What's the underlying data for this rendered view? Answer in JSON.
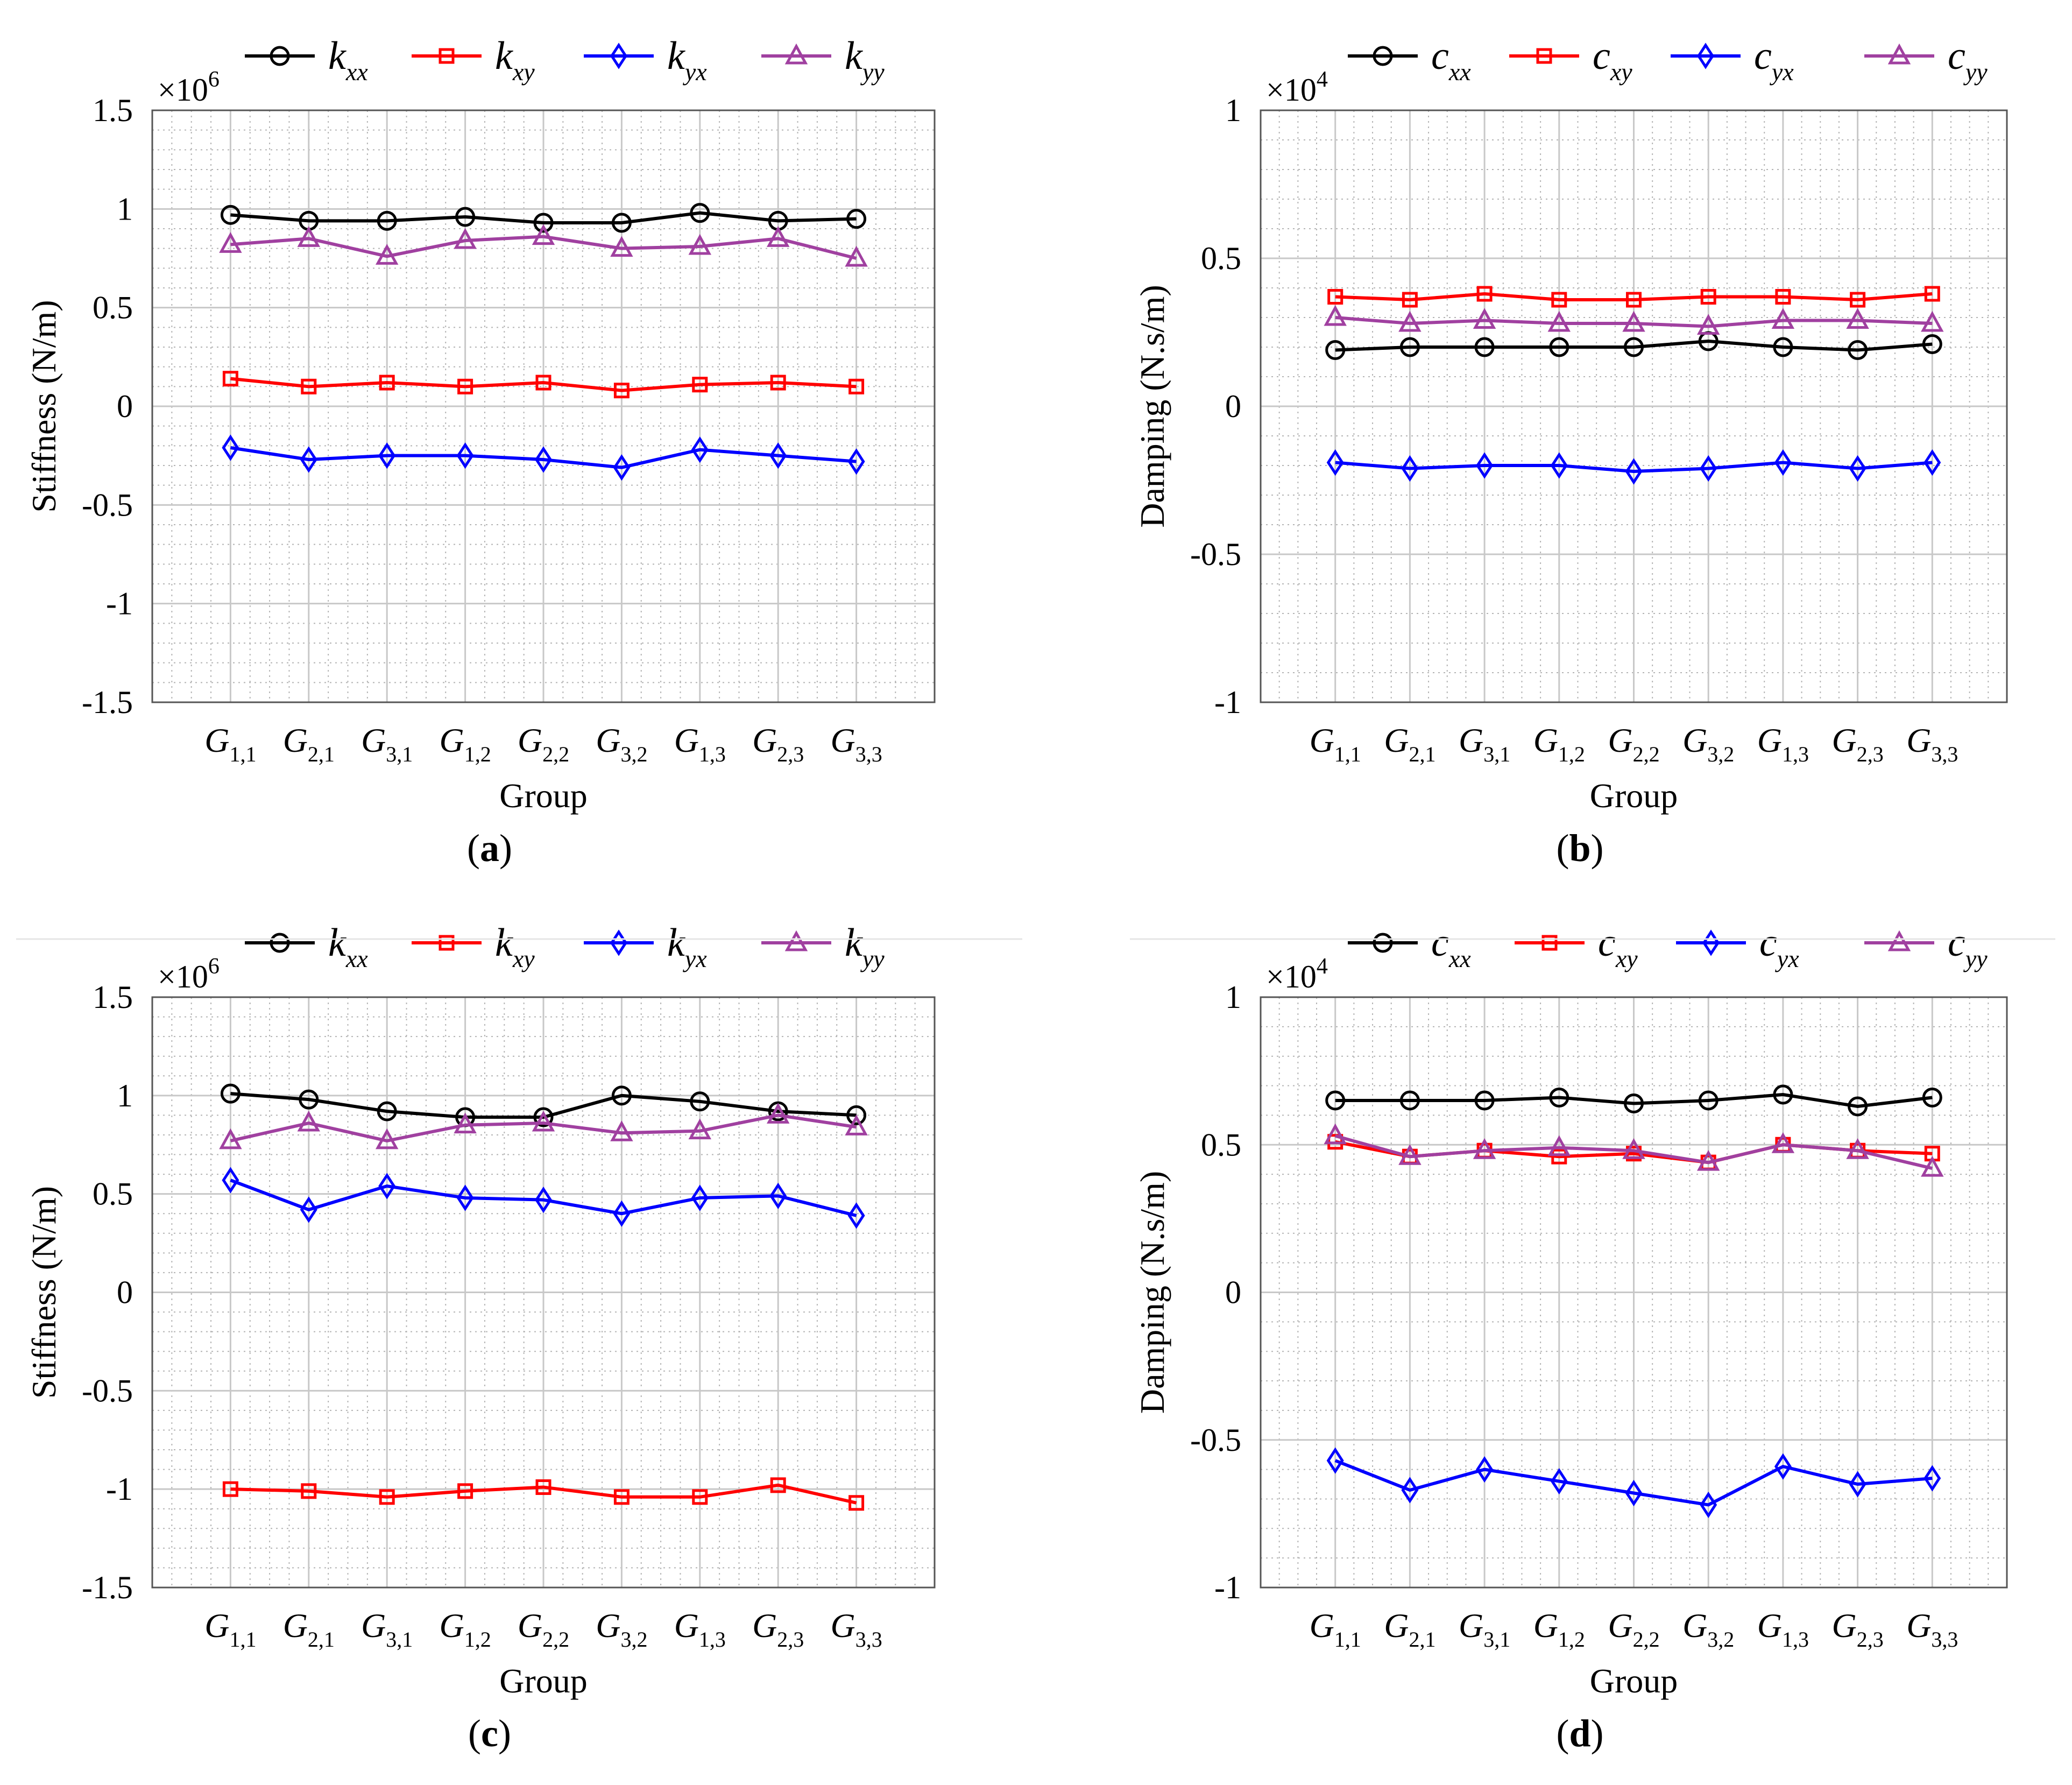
{
  "colors": {
    "kxx": "#000000",
    "kxy": "#ff0000",
    "kyx": "#0000ff",
    "kyy": "#a040a0",
    "grid": "#c8c8c8"
  },
  "chart_data": [
    {
      "id": "a",
      "type": "line",
      "panel_label": "a",
      "ylabel": "Stiffness (N/m)",
      "xlabel": "Group",
      "multiplier": "×10",
      "exponent": "6",
      "ylim": [
        -1.5,
        1.5
      ],
      "yticks": [
        -1.5,
        -1,
        -0.5,
        0,
        0.5,
        1,
        1.5
      ],
      "ytick_labels": [
        "-1.5",
        "-1",
        "-0.5",
        "0",
        "0.5",
        "1",
        "1.5"
      ],
      "categories": [
        {
          "base": "G",
          "sub": "1,1"
        },
        {
          "base": "G",
          "sub": "2,1"
        },
        {
          "base": "G",
          "sub": "3,1"
        },
        {
          "base": "G",
          "sub": "1,2"
        },
        {
          "base": "G",
          "sub": "2,2"
        },
        {
          "base": "G",
          "sub": "3,2"
        },
        {
          "base": "G",
          "sub": "1,3"
        },
        {
          "base": "G",
          "sub": "2,3"
        },
        {
          "base": "G",
          "sub": "3,3"
        }
      ],
      "series": [
        {
          "base": "k",
          "sub": "xx",
          "color": "#000000",
          "marker": "circle",
          "values": [
            0.97,
            0.94,
            0.94,
            0.96,
            0.93,
            0.93,
            0.98,
            0.94,
            0.95
          ]
        },
        {
          "base": "k",
          "sub": "xy",
          "color": "#ff0000",
          "marker": "square",
          "values": [
            0.14,
            0.1,
            0.12,
            0.1,
            0.12,
            0.08,
            0.11,
            0.12,
            0.1
          ]
        },
        {
          "base": "k",
          "sub": "yx",
          "color": "#0000ff",
          "marker": "diamond",
          "values": [
            -0.21,
            -0.27,
            -0.25,
            -0.25,
            -0.27,
            -0.31,
            -0.22,
            -0.25,
            -0.28
          ]
        },
        {
          "base": "k",
          "sub": "yy",
          "color": "#a040a0",
          "marker": "triangle",
          "values": [
            0.82,
            0.85,
            0.76,
            0.84,
            0.86,
            0.8,
            0.81,
            0.85,
            0.75
          ]
        }
      ]
    },
    {
      "id": "b",
      "type": "line",
      "panel_label": "b",
      "ylabel": "Damping (N.s/m)",
      "xlabel": "Group",
      "multiplier": "×10",
      "exponent": "4",
      "ylim": [
        -1,
        1
      ],
      "yticks": [
        -1,
        -0.5,
        0,
        0.5,
        1
      ],
      "ytick_labels": [
        "-1",
        "-0.5",
        "0",
        "0.5",
        "1"
      ],
      "categories": [
        {
          "base": "G",
          "sub": "1,1"
        },
        {
          "base": "G",
          "sub": "2,1"
        },
        {
          "base": "G",
          "sub": "3,1"
        },
        {
          "base": "G",
          "sub": "1,2"
        },
        {
          "base": "G",
          "sub": "2,2"
        },
        {
          "base": "G",
          "sub": "3,2"
        },
        {
          "base": "G",
          "sub": "1,3"
        },
        {
          "base": "G",
          "sub": "2,3"
        },
        {
          "base": "G",
          "sub": "3,3"
        }
      ],
      "series": [
        {
          "base": "c",
          "sub": "xx",
          "color": "#000000",
          "marker": "circle",
          "values": [
            0.19,
            0.2,
            0.2,
            0.2,
            0.2,
            0.22,
            0.2,
            0.19,
            0.21
          ]
        },
        {
          "base": "c",
          "sub": "xy",
          "color": "#ff0000",
          "marker": "square",
          "values": [
            0.37,
            0.36,
            0.38,
            0.36,
            0.36,
            0.37,
            0.37,
            0.36,
            0.38
          ]
        },
        {
          "base": "c",
          "sub": "yx",
          "color": "#0000ff",
          "marker": "diamond",
          "values": [
            -0.19,
            -0.21,
            -0.2,
            -0.2,
            -0.22,
            -0.21,
            -0.19,
            -0.21,
            -0.19
          ]
        },
        {
          "base": "c",
          "sub": "yy",
          "color": "#a040a0",
          "marker": "triangle",
          "values": [
            0.3,
            0.28,
            0.29,
            0.28,
            0.28,
            0.27,
            0.29,
            0.29,
            0.28
          ]
        }
      ]
    },
    {
      "id": "c",
      "type": "line",
      "panel_label": "c",
      "ylabel": "Stiffness (N/m)",
      "xlabel": "Group",
      "multiplier": "×10",
      "exponent": "6",
      "ylim": [
        -1.5,
        1.5
      ],
      "yticks": [
        -1.5,
        -1,
        -0.5,
        0,
        0.5,
        1,
        1.5
      ],
      "ytick_labels": [
        "-1.5",
        "-1",
        "-0.5",
        "0",
        "0.5",
        "1",
        "1.5"
      ],
      "categories": [
        {
          "base": "G",
          "sub": "1,1"
        },
        {
          "base": "G",
          "sub": "2,1"
        },
        {
          "base": "G",
          "sub": "3,1"
        },
        {
          "base": "G",
          "sub": "1,2"
        },
        {
          "base": "G",
          "sub": "2,2"
        },
        {
          "base": "G",
          "sub": "3,2"
        },
        {
          "base": "G",
          "sub": "1,3"
        },
        {
          "base": "G",
          "sub": "2,3"
        },
        {
          "base": "G",
          "sub": "3,3"
        }
      ],
      "series": [
        {
          "base": "k",
          "sub": "xx",
          "color": "#000000",
          "marker": "circle",
          "values": [
            1.01,
            0.98,
            0.92,
            0.89,
            0.89,
            1.0,
            0.97,
            0.92,
            0.9
          ]
        },
        {
          "base": "k",
          "sub": "xy",
          "color": "#ff0000",
          "marker": "square",
          "values": [
            -1.0,
            -1.01,
            -1.04,
            -1.01,
            -0.99,
            -1.04,
            -1.04,
            -0.98,
            -1.07
          ]
        },
        {
          "base": "k",
          "sub": "yx",
          "color": "#0000ff",
          "marker": "diamond",
          "values": [
            0.57,
            0.42,
            0.54,
            0.48,
            0.47,
            0.4,
            0.48,
            0.49,
            0.39
          ]
        },
        {
          "base": "k",
          "sub": "yy",
          "color": "#a040a0",
          "marker": "triangle",
          "values": [
            0.77,
            0.86,
            0.77,
            0.85,
            0.86,
            0.81,
            0.82,
            0.9,
            0.84
          ]
        }
      ]
    },
    {
      "id": "d",
      "type": "line",
      "panel_label": "d",
      "ylabel": "Damping (N.s/m)",
      "xlabel": "Group",
      "multiplier": "×10",
      "exponent": "4",
      "ylim": [
        -1,
        1
      ],
      "yticks": [
        -1,
        -0.5,
        0,
        0.5,
        1
      ],
      "ytick_labels": [
        "-1",
        "-0.5",
        "0",
        "0.5",
        "1"
      ],
      "categories": [
        {
          "base": "G",
          "sub": "1,1"
        },
        {
          "base": "G",
          "sub": "2,1"
        },
        {
          "base": "G",
          "sub": "3,1"
        },
        {
          "base": "G",
          "sub": "1,2"
        },
        {
          "base": "G",
          "sub": "2,2"
        },
        {
          "base": "G",
          "sub": "3,2"
        },
        {
          "base": "G",
          "sub": "1,3"
        },
        {
          "base": "G",
          "sub": "2,3"
        },
        {
          "base": "G",
          "sub": "3,3"
        }
      ],
      "series": [
        {
          "base": "c",
          "sub": "xx",
          "color": "#000000",
          "marker": "circle",
          "values": [
            0.65,
            0.65,
            0.65,
            0.66,
            0.64,
            0.65,
            0.67,
            0.63,
            0.66
          ]
        },
        {
          "base": "c",
          "sub": "xy",
          "color": "#ff0000",
          "marker": "square",
          "values": [
            0.51,
            0.46,
            0.48,
            0.46,
            0.47,
            0.44,
            0.5,
            0.48,
            0.47
          ]
        },
        {
          "base": "c",
          "sub": "yx",
          "color": "#0000ff",
          "marker": "diamond",
          "values": [
            -0.57,
            -0.67,
            -0.6,
            -0.64,
            -0.68,
            -0.72,
            -0.59,
            -0.65,
            -0.63
          ]
        },
        {
          "base": "c",
          "sub": "yy",
          "color": "#a040a0",
          "marker": "triangle",
          "values": [
            0.53,
            0.46,
            0.48,
            0.49,
            0.48,
            0.44,
            0.5,
            0.48,
            0.42
          ]
        }
      ]
    }
  ]
}
